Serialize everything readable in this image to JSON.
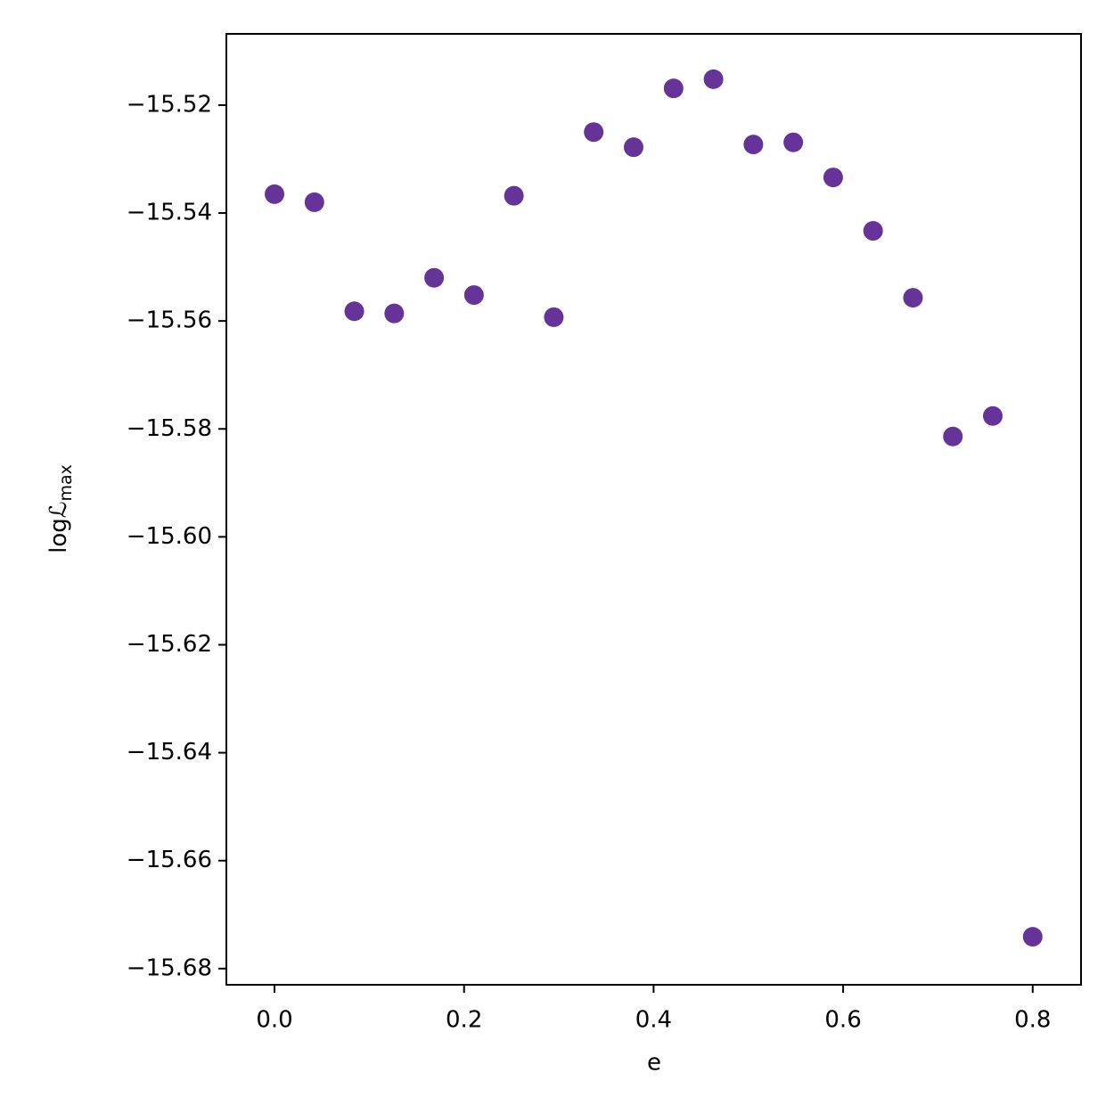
{
  "chart_data": {
    "type": "scatter",
    "x_label": "e",
    "y_label": {
      "main": "logℒ",
      "sub": "max"
    },
    "color": "#663399",
    "x": [
      0,
      0.0421,
      0.0842,
      0.1263,
      0.1684,
      0.2105,
      0.2526,
      0.2947,
      0.3368,
      0.3789,
      0.4211,
      0.4632,
      0.5053,
      0.5474,
      0.5895,
      0.6316,
      0.6737,
      0.7158,
      0.7579,
      0.8
    ],
    "values": [
      -15.5365,
      -15.538,
      -15.5582,
      -15.5586,
      -15.552,
      -15.5552,
      -15.5368,
      -15.5593,
      -15.525,
      -15.5278,
      -15.5169,
      -15.5152,
      -15.5273,
      -15.5269,
      -15.5334,
      -15.5433,
      -15.5557,
      -15.5814,
      -15.5776,
      -15.6741
    ],
    "xlim": [
      -0.0508,
      0.851
    ],
    "ylim": [
      -15.683,
      -15.5068
    ],
    "xticks": [
      {
        "value": 0,
        "label": "0.0"
      },
      0.2,
      0.4,
      0.6,
      0.8
    ],
    "yticks": [
      {
        "value": -15.52,
        "label": "−15.52"
      },
      {
        "value": -15.54,
        "label": "−15.54"
      },
      {
        "value": -15.56,
        "label": "−15.56"
      },
      {
        "value": -15.58,
        "label": "−15.58"
      },
      {
        "value": -15.6,
        "label": "−15.60"
      },
      {
        "value": -15.62,
        "label": "−15.62"
      },
      {
        "value": -15.64,
        "label": "−15.64"
      },
      {
        "value": -15.66,
        "label": "−15.66"
      },
      {
        "value": -15.68,
        "label": "−15.68"
      }
    ]
  }
}
